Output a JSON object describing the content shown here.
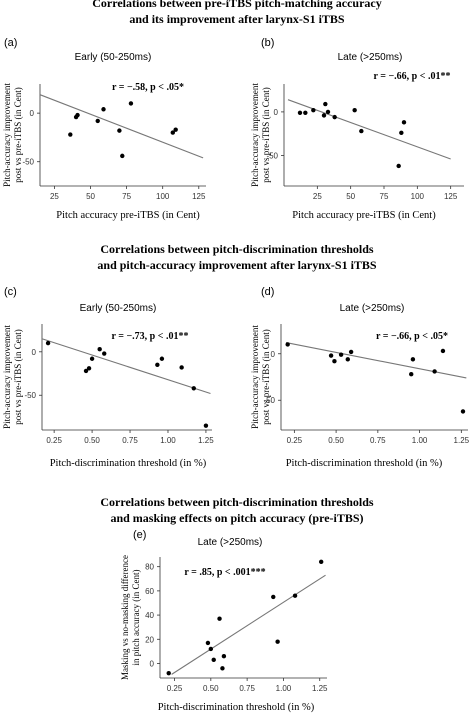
{
  "figure": {
    "sections": [
      {
        "title_line1": "Correlations between pre-iTBS pitch-matching accuracy",
        "title_line2": "and its improvement after larynx-S1 iTBS"
      },
      {
        "title_line1": "Correlations between pitch-discrimination thresholds",
        "title_line2": "and pitch-accuracy improvement after larynx-S1 iTBS"
      },
      {
        "title_line1": "Correlations between pitch-discrimination thresholds",
        "title_line2": "and masking effects on pitch accuracy (pre-iTBS)"
      }
    ]
  },
  "chart_data": [
    {
      "panel": "(a)",
      "type": "scatter",
      "subtitle": "Early (50-250ms)",
      "stat": "r = −.58, p < .05*",
      "xlabel": "Pitch accuracy pre-iTBS (in Cent)",
      "ylabel_line1": "Pitch-accuracy improvement",
      "ylabel_line2": "post vs pre-iTBS (in Cent)",
      "xlim": [
        15,
        130
      ],
      "ylim": [
        -75,
        30
      ],
      "xticks": [
        25,
        50,
        75,
        100,
        125
      ],
      "yticks": [
        0,
        -50
      ],
      "x": [
        36,
        40,
        41,
        55,
        59,
        70,
        72,
        78,
        107,
        109
      ],
      "y": [
        -22,
        -4,
        -2,
        -8,
        4,
        -18,
        -44,
        10,
        -20,
        -17
      ],
      "fit": [
        [
          15,
          19
        ],
        [
          128,
          -46
        ]
      ]
    },
    {
      "panel": "(b)",
      "type": "scatter",
      "subtitle": "Late (>250ms)",
      "stat": "r = −.66, p < .01**",
      "xlabel": "Pitch accuracy pre-iTBS (in Cent)",
      "ylabel_line1": "Pitch-accuracy improvement",
      "ylabel_line2": "post vs pre-iTBS (in Cent)",
      "xlim": [
        0,
        135
      ],
      "ylim": [
        -85,
        32
      ],
      "xticks": [
        25,
        50,
        75,
        100,
        125
      ],
      "yticks": [
        0,
        -50
      ],
      "x": [
        12,
        16,
        22,
        30,
        31,
        33,
        38,
        53,
        58,
        86,
        88,
        90
      ],
      "y": [
        -1,
        -1,
        2,
        -4,
        9,
        0,
        -6,
        2,
        -22,
        -62,
        -24,
        -12
      ],
      "fit": [
        [
          3,
          14
        ],
        [
          125,
          -54
        ]
      ]
    },
    {
      "panel": "(c)",
      "type": "scatter",
      "subtitle": "Early (50-250ms)",
      "stat": "r = −.73, p < .01**",
      "xlabel": "Pitch-discrimination threshold (in %)",
      "ylabel_line1": "Pitch-accuracy improvement",
      "ylabel_line2": "post vs pre-iTBS (in Cent)",
      "xlim": [
        0.17,
        1.29
      ],
      "ylim": [
        -90,
        32
      ],
      "xticks": [
        0.25,
        0.5,
        0.75,
        1.0,
        1.25
      ],
      "xticklabels": [
        "0.25",
        "0.50",
        "0.75",
        "1.00",
        "1.25"
      ],
      "yticks": [
        0,
        -50
      ],
      "x": [
        0.21,
        0.46,
        0.48,
        0.5,
        0.55,
        0.58,
        0.93,
        0.96,
        1.09,
        1.17,
        1.25
      ],
      "y": [
        10,
        -22,
        -19,
        -8,
        3,
        -2,
        -15,
        -8,
        -18,
        -42,
        -85
      ],
      "fit": [
        [
          0.17,
          15
        ],
        [
          1.28,
          -48
        ]
      ]
    },
    {
      "panel": "(d)",
      "type": "scatter",
      "subtitle": "Late (>250ms)",
      "stat": "r = −.66, p < .05*",
      "xlabel": "Pitch-discrimination threshold (in %)",
      "ylabel_line1": "Pitch-accuracy improvement",
      "ylabel_line2": "post vs pre-iTBS (in Cent)",
      "xlim": [
        0.17,
        1.29
      ],
      "ylim": [
        -82,
        32
      ],
      "xticks": [
        0.25,
        0.5,
        0.75,
        1.0,
        1.25
      ],
      "xticklabels": [
        "0.25",
        "0.50",
        "0.75",
        "1.00",
        "1.25"
      ],
      "yticks": [
        0,
        -50
      ],
      "x": [
        0.21,
        0.47,
        0.49,
        0.53,
        0.57,
        0.59,
        0.95,
        0.96,
        1.09,
        1.14,
        1.26
      ],
      "y": [
        10,
        -2,
        -8,
        -1,
        -6,
        2,
        -22,
        -6,
        -19,
        3,
        -62
      ],
      "fit": [
        [
          0.2,
          12
        ],
        [
          1.28,
          -26
        ]
      ]
    },
    {
      "panel": "(e)",
      "type": "scatter",
      "subtitle": "Late (>250ms)",
      "stat": "r = .85, p < .001***",
      "xlabel": "Pitch-discrimination threshold (in %)",
      "ylabel_line1": "Masking vs no-masking difference",
      "ylabel_line2": "in pitch accuracy (in Cent)",
      "xlim": [
        0.15,
        1.3
      ],
      "ylim": [
        -12,
        88
      ],
      "xticks": [
        0.25,
        0.5,
        0.75,
        1.0,
        1.25
      ],
      "xticklabels": [
        "0.25",
        "0.50",
        "0.75",
        "1.00",
        "1.25"
      ],
      "yticks": [
        0,
        20,
        40,
        60,
        80
      ],
      "x": [
        0.21,
        0.48,
        0.5,
        0.52,
        0.56,
        0.58,
        0.59,
        0.93,
        0.96,
        1.08,
        1.26
      ],
      "y": [
        -8,
        17,
        12,
        3,
        37,
        -4,
        6,
        55,
        18,
        56,
        84
      ],
      "fit": [
        [
          0.23,
          -9
        ],
        [
          1.29,
          73
        ]
      ]
    }
  ]
}
